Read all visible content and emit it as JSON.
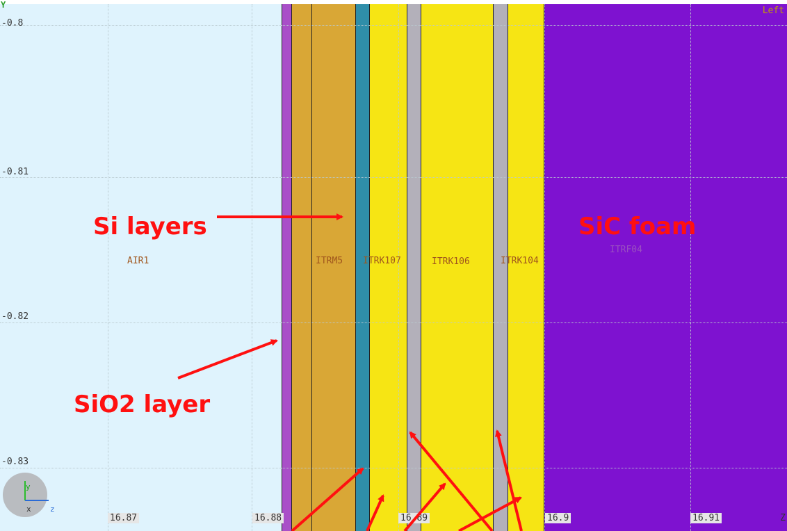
{
  "view": {
    "label": "Left"
  },
  "axes": {
    "y_letter": "Y",
    "y_ticks": [
      "-0.8",
      "-0.81",
      "-0.82",
      "-0.83"
    ],
    "x_ticks": [
      "16.87",
      "16.88",
      "16.89",
      "16.9",
      "16.91"
    ],
    "z_letter": "Z"
  },
  "volumes": [
    {
      "name": "AIR1",
      "color": "#dff3fd"
    },
    {
      "name": "ITRM5",
      "color": "#d9a736"
    },
    {
      "name": "ITRK107",
      "color": "#f6e514"
    },
    {
      "name": "ITRK106",
      "color": "#f6e514"
    },
    {
      "name": "ITRK104",
      "color": "#f6e514"
    },
    {
      "name": "ITRF04",
      "color": "#7e12d0"
    }
  ],
  "annotations": {
    "si_layers": "Si layers",
    "sio2_layer": "SiO2 layer",
    "sic_foam": "SiC foam"
  },
  "gizmo": {
    "y": "y",
    "x": "x",
    "z": "z"
  },
  "colors": {
    "annotation": "#ff1010",
    "silica": "#a94fc8",
    "mount": "#d9a736",
    "silicon": "#2f8ea9",
    "kapton": "#b3b0ba",
    "sensor": "#f6e514",
    "foam": "#7e12d0"
  }
}
